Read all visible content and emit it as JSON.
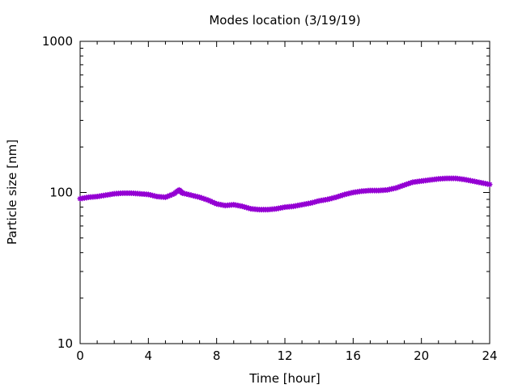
{
  "chart_data": {
    "type": "line",
    "title": "Modes location (3/19/19)",
    "xlabel": "Time [hour]",
    "ylabel": "Particle size [nm]",
    "xlim": [
      0,
      24
    ],
    "ylim": [
      10,
      1000
    ],
    "yscale": "log",
    "xticks": [
      "0",
      "4",
      "8",
      "12",
      "16",
      "20",
      "24"
    ],
    "yticks": [
      "10",
      "100",
      "1000"
    ],
    "grid": false,
    "series": [
      {
        "color": "#9400d3",
        "marker": "star",
        "x": [
          0,
          0.5,
          1,
          1.5,
          2,
          2.5,
          3,
          3.5,
          4,
          4.5,
          5,
          5.5,
          5.8,
          6,
          6.5,
          7,
          7.5,
          8,
          8.5,
          9,
          9.5,
          10,
          10.5,
          11,
          11.5,
          12,
          12.5,
          13,
          13.5,
          14,
          14.5,
          15,
          15.5,
          16,
          16.5,
          17,
          17.5,
          18,
          18.5,
          19,
          19.5,
          20,
          20.5,
          21,
          21.5,
          22,
          22.5,
          23,
          23.5,
          24
        ],
        "y": [
          91,
          93,
          94,
          96,
          98,
          99,
          99,
          98,
          97,
          94,
          93,
          98,
          104,
          99,
          96,
          93,
          89,
          84,
          82,
          83,
          81,
          78,
          77,
          77,
          78,
          80,
          81,
          83,
          85,
          88,
          90,
          93,
          97,
          100,
          102,
          103,
          103,
          104,
          107,
          112,
          117,
          119,
          121,
          123,
          124,
          124,
          122,
          119,
          116,
          113
        ]
      }
    ]
  }
}
